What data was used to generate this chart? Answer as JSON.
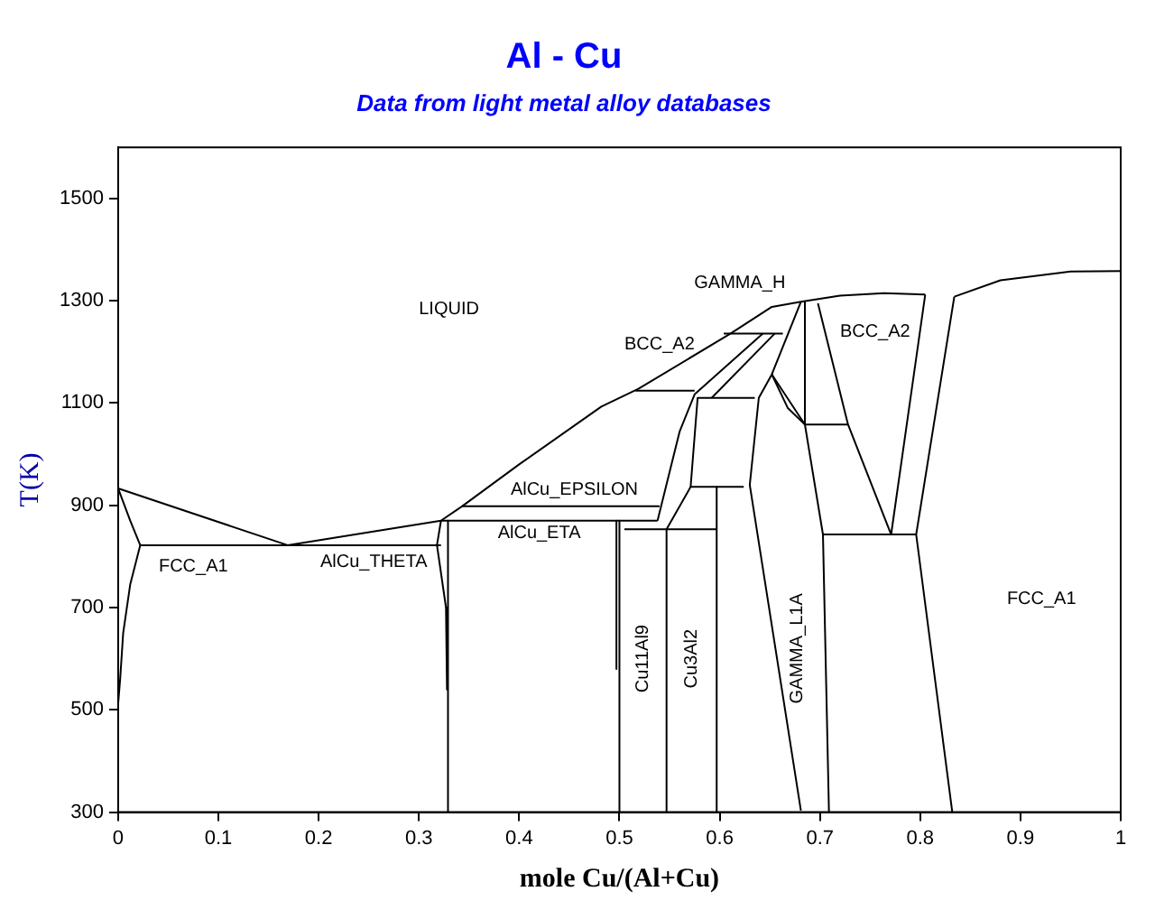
{
  "chart_data": {
    "type": "line",
    "title": "Al - Cu",
    "subtitle": "Data from light metal alloy databases",
    "xlabel": "mole Cu/(Al+Cu)",
    "ylabel": "T(K)",
    "xlim": [
      0,
      1
    ],
    "ylim": [
      300,
      1600
    ],
    "xticks": [
      0,
      0.1,
      0.2,
      0.3,
      0.4,
      0.5,
      0.6,
      0.7,
      0.8,
      0.9,
      1
    ],
    "yticks": [
      300,
      500,
      700,
      900,
      1100,
      1300,
      1500
    ],
    "grid": false,
    "legend": false,
    "marker": "none",
    "line_style": "solid",
    "series": [
      {
        "color": "#000000",
        "x": [
          0,
          0.169,
          0.322,
          0.343,
          0.4,
          0.482,
          0.519,
          0.611,
          0.652,
          0.681,
          0.72,
          0.764,
          0.805
        ],
        "values": [
          933,
          822,
          870,
          898,
          980,
          1093,
          1128,
          1236,
          1288,
          1298,
          1310,
          1315,
          1312
        ]
      },
      {
        "color": "#000000",
        "x": [
          0.834,
          0.88,
          0.95,
          1
        ],
        "values": [
          1308,
          1340,
          1357,
          1358
        ]
      },
      {
        "color": "#000000",
        "x": [
          0,
          0.012,
          0.022
        ],
        "values": [
          933,
          870,
          822
        ]
      },
      {
        "color": "#000000",
        "x": [
          0.022,
          0.012,
          0.005,
          0.002,
          0
        ],
        "values": [
          822,
          745,
          650,
          560,
          512
        ]
      },
      {
        "color": "#000000",
        "x": [
          0.022,
          0.322
        ],
        "values": [
          822,
          822
        ]
      },
      {
        "color": "#000000",
        "x": [
          0.322,
          0.318,
          0.327,
          0.328
        ],
        "values": [
          870,
          822,
          700,
          540
        ]
      },
      {
        "color": "#000000",
        "x": [
          0.329,
          0.329
        ],
        "values": [
          870,
          300
        ]
      },
      {
        "color": "#000000",
        "x": [
          0.322,
          0.538
        ],
        "values": [
          870,
          870
        ]
      },
      {
        "color": "#000000",
        "x": [
          0.343,
          0.54
        ],
        "values": [
          898,
          898
        ]
      },
      {
        "color": "#000000",
        "x": [
          0.497,
          0.497
        ],
        "values": [
          870,
          580
        ]
      },
      {
        "color": "#000000",
        "x": [
          0.5,
          0.5
        ],
        "values": [
          870,
          300
        ]
      },
      {
        "color": "#000000",
        "x": [
          0.505,
          0.597
        ],
        "values": [
          853,
          853
        ]
      },
      {
        "color": "#000000",
        "x": [
          0.547,
          0.547
        ],
        "values": [
          853,
          300
        ]
      },
      {
        "color": "#000000",
        "x": [
          0.597,
          0.597
        ],
        "values": [
          936,
          300
        ]
      },
      {
        "color": "#000000",
        "x": [
          0.571,
          0.624
        ],
        "values": [
          936,
          936
        ]
      },
      {
        "color": "#000000",
        "x": [
          0.538,
          0.56,
          0.575,
          0.643
        ],
        "values": [
          870,
          1044,
          1117,
          1236
        ]
      },
      {
        "color": "#000000",
        "x": [
          0.547,
          0.571,
          0.578,
          0.635
        ],
        "values": [
          853,
          936,
          1110,
          1110
        ]
      },
      {
        "color": "#000000",
        "x": [
          0.516,
          0.575
        ],
        "values": [
          1124,
          1124
        ]
      },
      {
        "color": "#000000",
        "x": [
          0.604,
          0.663
        ],
        "values": [
          1236,
          1236
        ]
      },
      {
        "color": "#000000",
        "x": [
          0.592,
          0.655
        ],
        "values": [
          1110,
          1236
        ]
      },
      {
        "color": "#000000",
        "x": [
          0.681,
          0.652,
          0.639,
          0.63,
          0.681
        ],
        "values": [
          1298,
          1156,
          1110,
          940,
          303
        ]
      },
      {
        "color": "#000000",
        "x": [
          0.652,
          0.685,
          0.703,
          0.709
        ],
        "values": [
          1156,
          1058,
          843,
          300
        ]
      },
      {
        "color": "#000000",
        "x": [
          0.652,
          0.668,
          0.685
        ],
        "values": [
          1156,
          1090,
          1058
        ]
      },
      {
        "color": "#000000",
        "x": [
          0.685,
          0.685
        ],
        "values": [
          1298,
          1058
        ]
      },
      {
        "color": "#000000",
        "x": [
          0.685,
          0.728
        ],
        "values": [
          1058,
          1058
        ]
      },
      {
        "color": "#000000",
        "x": [
          0.698,
          0.728,
          0.771
        ],
        "values": [
          1295,
          1058,
          843
        ]
      },
      {
        "color": "#000000",
        "x": [
          0.805,
          0.771
        ],
        "values": [
          1312,
          843
        ]
      },
      {
        "color": "#000000",
        "x": [
          0.834,
          0.796,
          0.832
        ],
        "values": [
          1308,
          843,
          300
        ]
      },
      {
        "color": "#000000",
        "x": [
          0.703,
          0.796
        ],
        "values": [
          843,
          843
        ]
      }
    ],
    "annotations": [
      "LIQUID",
      "FCC_A1",
      "AlCu_THETA",
      "AlCu_EPSILON",
      "GAMMA_L1A",
      "AlCu_ETA",
      "Cu11Al9",
      "Cu3Al2",
      "BCC_A2",
      "GAMMA_H",
      "BCC_A2",
      "FCC_A1"
    ]
  }
}
